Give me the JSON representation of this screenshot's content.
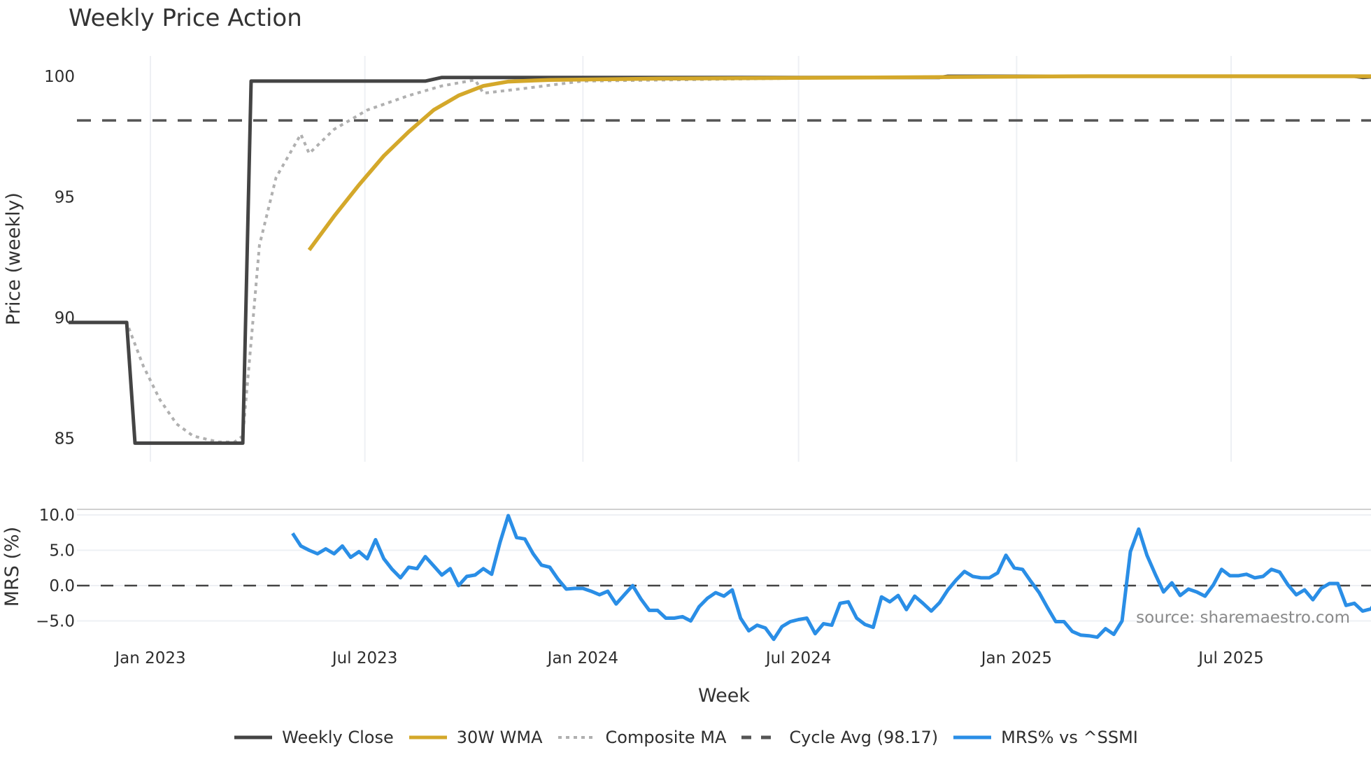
{
  "title": "Weekly Price Action",
  "source_text": "source: sharemaestro.com",
  "colors": {
    "weekly_close": "#444444",
    "wma30": "#d4a82a",
    "composite_ma": "#b0b0b0",
    "cycle_avg": "#555555",
    "mrs": "#2a8ee6",
    "grid": "#eef0f4"
  },
  "legend": [
    {
      "label": "Weekly Close",
      "style": "solid",
      "color": "#444444"
    },
    {
      "label": "30W WMA",
      "style": "solid",
      "color": "#d4a82a"
    },
    {
      "label": "Composite MA",
      "style": "dotted",
      "color": "#b0b0b0"
    },
    {
      "label": "Cycle Avg (98.17)",
      "style": "dashed",
      "color": "#555555"
    },
    {
      "label": "MRS% vs ^SSMI",
      "style": "solid",
      "color": "#2a8ee6"
    }
  ],
  "chart_data": [
    {
      "type": "line",
      "title": "Weekly Price Action",
      "xlabel": "Week",
      "ylabel": "Price (weekly)",
      "x_ticks": [
        "Jan 2023",
        "Jul 2023",
        "Jan 2024",
        "Jul 2024",
        "Jan 2025",
        "Jul 2025"
      ],
      "y_ticks": [
        85,
        90,
        95,
        100
      ],
      "ylim": [
        84.5,
        100.6
      ],
      "grid": true,
      "legend_position": "bottom",
      "series": [
        {
          "name": "Weekly Close",
          "points": [
            [
              "2022-10-24",
              89.8
            ],
            [
              "2022-12-12",
              89.8
            ],
            [
              "2022-12-19",
              84.8
            ],
            [
              "2023-03-20",
              84.8
            ],
            [
              "2023-03-27",
              99.8
            ],
            [
              "2023-08-21",
              99.8
            ],
            [
              "2023-09-04",
              99.95
            ],
            [
              "2024-10-28",
              99.95
            ],
            [
              "2024-11-04",
              100.0
            ],
            [
              "2025-10-13",
              100.0
            ],
            [
              "2025-10-20",
              99.95
            ],
            [
              "2025-11-03",
              100.0
            ],
            [
              "2026-01-05",
              100.0
            ]
          ]
        },
        {
          "name": "30W WMA",
          "points": [
            [
              "2023-05-15",
              92.8
            ],
            [
              "2023-06-05",
              94.2
            ],
            [
              "2023-06-26",
              95.5
            ],
            [
              "2023-07-17",
              96.7
            ],
            [
              "2023-08-07",
              97.7
            ],
            [
              "2023-08-28",
              98.6
            ],
            [
              "2023-09-18",
              99.2
            ],
            [
              "2023-10-09",
              99.6
            ],
            [
              "2023-10-30",
              99.78
            ],
            [
              "2023-12-04",
              99.85
            ],
            [
              "2024-03-04",
              99.9
            ],
            [
              "2024-09-02",
              99.95
            ],
            [
              "2025-03-03",
              100.0
            ],
            [
              "2026-01-05",
              100.0
            ]
          ]
        },
        {
          "name": "Composite MA",
          "points": [
            [
              "2022-11-21",
              89.8
            ],
            [
              "2022-12-12",
              89.8
            ],
            [
              "2022-12-26",
              88.0
            ],
            [
              "2023-01-09",
              86.6
            ],
            [
              "2023-01-23",
              85.6
            ],
            [
              "2023-02-06",
              85.1
            ],
            [
              "2023-02-27",
              84.85
            ],
            [
              "2023-03-13",
              84.85
            ],
            [
              "2023-03-20",
              85.1
            ],
            [
              "2023-03-27",
              89.0
            ],
            [
              "2023-04-03",
              93.0
            ],
            [
              "2023-04-17",
              95.8
            ],
            [
              "2023-05-01",
              97.0
            ],
            [
              "2023-05-08",
              97.6
            ],
            [
              "2023-05-15",
              96.8
            ],
            [
              "2023-06-05",
              97.8
            ],
            [
              "2023-07-03",
              98.6
            ],
            [
              "2023-08-07",
              99.2
            ],
            [
              "2023-09-04",
              99.6
            ],
            [
              "2023-10-02",
              99.85
            ],
            [
              "2023-10-09",
              99.3
            ],
            [
              "2023-11-13",
              99.5
            ],
            [
              "2024-01-01",
              99.8
            ],
            [
              "2024-06-03",
              99.9
            ],
            [
              "2024-12-02",
              100.0
            ],
            [
              "2026-01-05",
              100.0
            ]
          ]
        },
        {
          "name": "Cycle Avg (98.17)",
          "constant": 98.17
        }
      ]
    },
    {
      "type": "line",
      "title": "",
      "xlabel": "Week",
      "ylabel": "MRS (%)",
      "y_ticks": [
        -5.0,
        0.0,
        5.0,
        10.0
      ],
      "ylim": [
        -8.5,
        11.2
      ],
      "grid": true,
      "reference_line": 0.0,
      "series": [
        {
          "name": "MRS% vs ^SSMI",
          "start": "2023-05-01",
          "interval_days": 7,
          "values": [
            7.4,
            5.6,
            5.0,
            4.5,
            5.2,
            4.5,
            5.6,
            4.0,
            4.8,
            3.8,
            6.5,
            3.8,
            2.3,
            1.1,
            2.6,
            2.4,
            4.1,
            2.8,
            1.5,
            2.4,
            0.0,
            1.3,
            1.5,
            2.4,
            1.6,
            6.1,
            9.9,
            6.8,
            6.6,
            4.5,
            2.9,
            2.6,
            0.9,
            -0.5,
            -0.4,
            -0.4,
            -0.8,
            -1.3,
            -0.8,
            -2.6,
            -1.3,
            0.0,
            -1.9,
            -3.5,
            -3.5,
            -4.6,
            -4.6,
            -4.4,
            -5.0,
            -3.0,
            -1.8,
            -1.0,
            -1.5,
            -0.6,
            -4.6,
            -6.4,
            -5.6,
            -6.0,
            -7.6,
            -5.8,
            -5.1,
            -4.8,
            -4.6,
            -6.8,
            -5.4,
            -5.6,
            -2.5,
            -2.3,
            -4.6,
            -5.5,
            -5.9,
            -1.6,
            -2.3,
            -1.4,
            -3.4,
            -1.5,
            -2.5,
            -3.6,
            -2.4,
            -0.6,
            0.8,
            2.0,
            1.3,
            1.1,
            1.1,
            1.8,
            4.3,
            2.5,
            2.3,
            0.6,
            -1.0,
            -3.1,
            -5.1,
            -5.1,
            -6.5,
            -7.0,
            -7.1,
            -7.3,
            -6.1,
            -6.9,
            -5.0,
            4.8,
            8.0,
            4.3,
            1.6,
            -0.9,
            0.4,
            -1.4,
            -0.5,
            -0.9,
            -1.5,
            0.1,
            2.3,
            1.4,
            1.4,
            1.6,
            1.1,
            1.3,
            2.3,
            1.9,
            0.1,
            -1.3,
            -0.6,
            -2.0,
            -0.4,
            0.3,
            0.3,
            -2.8,
            -2.5,
            -3.6,
            -3.3,
            -1.6,
            -1.0
          ]
        }
      ]
    }
  ]
}
